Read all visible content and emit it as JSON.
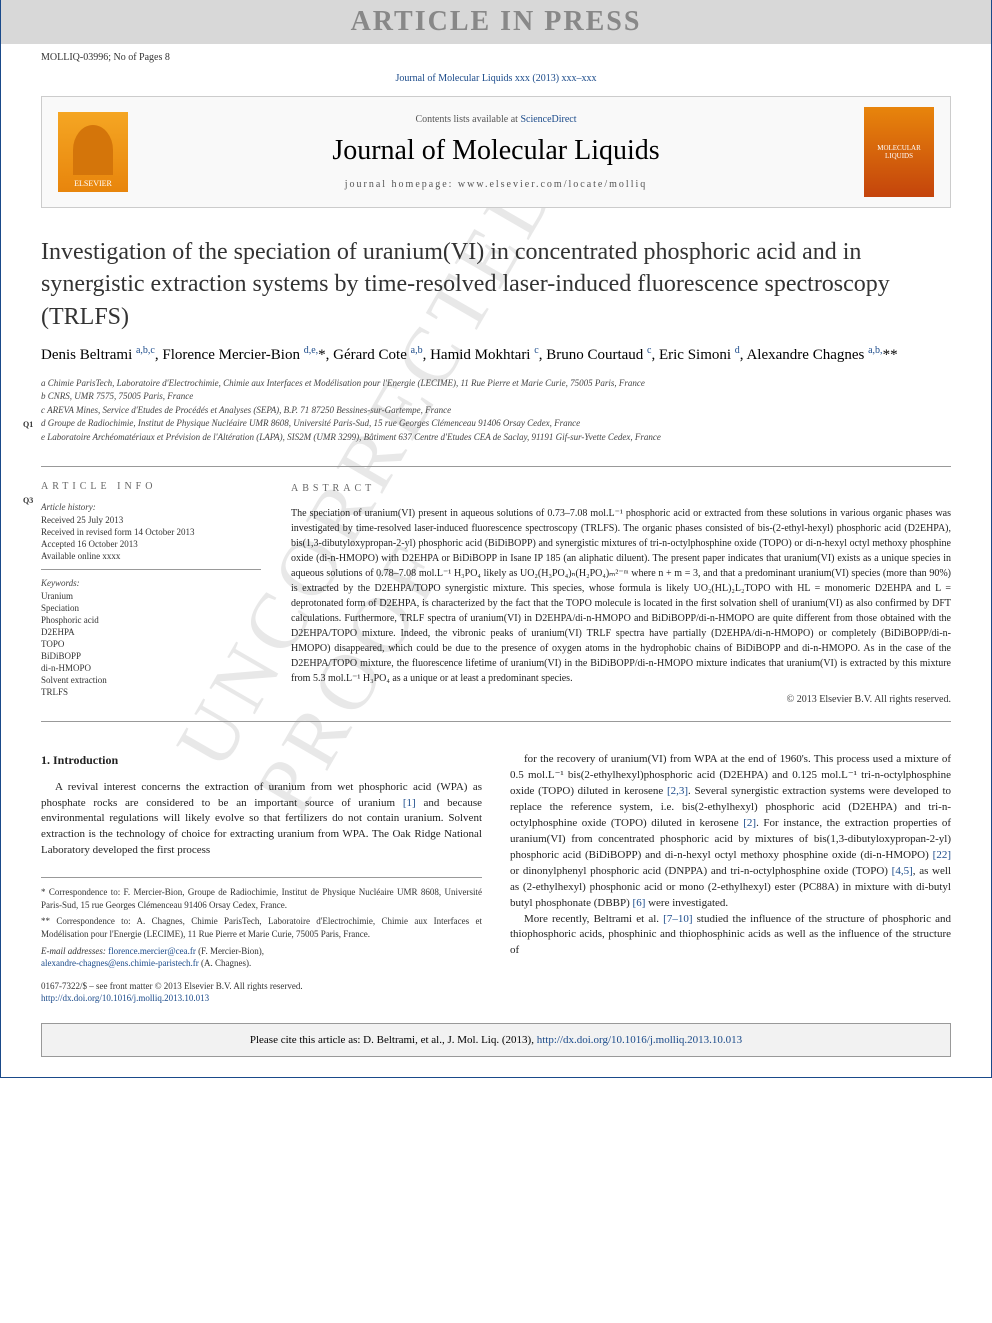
{
  "banner": {
    "text": "ARTICLE IN PRESS"
  },
  "model": "MOLLIQ-03996; No of Pages 8",
  "cite_top": "Journal of Molecular Liquids xxx (2013) xxx–xxx",
  "journal_box": {
    "contents": "Contents lists available at ",
    "contents_link": "ScienceDirect",
    "name": "Journal of Molecular Liquids",
    "homepage": "journal homepage: www.elsevier.com/locate/molliq",
    "elsevier": "ELSEVIER",
    "cover_text": "MOLECULAR LIQUIDS"
  },
  "title": "Investigation of the speciation of uranium(VI) in concentrated phosphoric acid and in synergistic extraction systems by time-resolved laser-induced fluorescence spectroscopy (TRLFS)",
  "authors_html": "Denis Beltrami <sup>a,b,c</sup>, Florence Mercier-Bion <sup>d,e,</sup>*, Gérard Cote <sup>a,b</sup>, Hamid Mokhtari <sup>c</sup>, Bruno Courtaud <sup>c</sup>, Eric Simoni <sup>d</sup>, Alexandre Chagnes <sup>a,b,</sup>**",
  "affiliations": [
    "a  Chimie ParisTech, Laboratoire d'Electrochimie, Chimie aux Interfaces et Modélisation pour l'Energie (LECIME), 11 Rue Pierre et Marie Curie, 75005 Paris, France",
    "b  CNRS, UMR 7575, 75005 Paris, France",
    "c  AREVA Mines, Service d'Etudes de Procédés et Analyses (SEPA), B.P. 71 87250 Bessines-sur-Gartempe, France",
    "d  Groupe de Radiochimie, Institut de Physique Nucléaire UMR 8608, Université Paris-Sud, 15 rue Georges Clémenceau 91406 Orsay Cedex, France",
    "e  Laboratoire Archéomatériaux et Prévision de l'Altération (LAPA), SIS2M (UMR 3299), Bâtiment 637 Centre d'Etudes CEA de Saclay, 91191 Gif-sur-Yvette Cedex, France"
  ],
  "article_info": {
    "head": "article info",
    "history_label": "Article history:",
    "received": "Received 25 July 2013",
    "revised": "Received in revised form 14 October 2013",
    "accepted": "Accepted 16 October 2013",
    "online": "Available online xxxx",
    "keywords_label": "Keywords:",
    "keywords": [
      "Uranium",
      "Speciation",
      "Phosphoric acid",
      "D2EHPA",
      "TOPO",
      "BiDiBOPP",
      "di-n-HMOPO",
      "Solvent extraction",
      "TRLFS"
    ]
  },
  "abstract": {
    "head": "abstract",
    "text": "The speciation of uranium(VI) present in aqueous solutions of 0.73–7.08 mol.L⁻¹ phosphoric acid or extracted from these solutions in various organic phases was investigated by time-resolved laser-induced fluorescence spectroscopy (TRLFS). The organic phases consisted of bis-(2-ethyl-hexyl) phosphoric acid (D2EHPA), bis(1,3-dibutyloxypropan-2-yl) phosphoric acid (BiDiBOPP) and synergistic mixtures of tri-n-octylphosphine oxide (TOPO) or di-n-hexyl octyl methoxy phosphine oxide (di-n-HMOPO) with D2EHPA or BiDiBOPP in Isane IP 185 (an aliphatic diluent). The present paper indicates that uranium(VI) exists as a unique species in aqueous solutions of 0.78–7.08 mol.L⁻¹ H₃PO₄ likely as UO₂(H₃PO₄)ₙ(H₂PO₄)ₘ²⁻ᵐ where n + m = 3, and that a predominant uranium(VI) species (more than 90%) is extracted by the D2EHPA/TOPO synergistic mixture. This species, whose formula is likely UO₂(HL)₂L₂TOPO with HL = monomeric D2EHPA and L = deprotonated form of D2EHPA, is characterized by the fact that the TOPO molecule is located in the first solvation shell of uranium(VI) as also confirmed by DFT calculations. Furthermore, TRLF spectra of uranium(VI) in D2EHPA/di-n-HMOPO and BiDiBOPP/di-n-HMOPO are quite different from those obtained with the D2EHPA/TOPO mixture. Indeed, the vibronic peaks of uranium(VI) TRLF spectra have partially (D2EHPA/di-n-HMOPO) or completely (BiDiBOPP/di-n-HMOPO) disappeared, which could be due to the presence of oxygen atoms in the hydrophobic chains of BiDiBOPP and di-n-HMOPO. As in the case of the D2EHPA/TOPO mixture, the fluorescence lifetime of uranium(VI) in the BiDiBOPP/di-n-HMOPO mixture indicates that uranium(VI) is extracted by this mixture from 5.3 mol.L⁻¹ H₃PO₄ as a unique or at least a predominant species.",
    "copyright": "© 2013 Elsevier B.V. All rights reserved."
  },
  "section1": {
    "head": "1. Introduction",
    "p1": "A revival interest concerns the extraction of uranium from wet phosphoric acid (WPA) as phosphate rocks are considered to be an important source of uranium [1] and because environmental regulations will likely evolve so that fertilizers do not contain uranium. Solvent extraction is the technology of choice for extracting uranium from WPA. The Oak Ridge National Laboratory developed the first process",
    "p2": "for the recovery of uranium(VI) from WPA at the end of 1960's. This process used a mixture of 0.5 mol.L⁻¹ bis(2-ethylhexyl)phosphoric acid (D2EHPA) and 0.125 mol.L⁻¹ tri-n-octylphosphine oxide (TOPO) diluted in kerosene [2,3]. Several synergistic extraction systems were developed to replace the reference system, i.e. bis(2-ethylhexyl) phosphoric acid (D2EHPA) and tri-n-octylphosphine oxide (TOPO) diluted in kerosene [2]. For instance, the extraction properties of uranium(VI) from concentrated phosphoric acid by mixtures of bis(1,3-dibutyloxypropan-2-yl) phosphoric acid (BiDiBOPP) and di-n-hexyl octyl methoxy phosphine oxide (di-n-HMOPO) [22] or dinonylphenyl phosphoric acid (DNPPA) and tri-n-octylphosphine oxide (TOPO) [4,5], as well as (2-ethylhexyl) phosphonic acid or mono (2-ethylhexyl) ester (PC88A) in mixture with di-butyl butyl phosphonate (DBBP) [6] were investigated.",
    "p3": "More recently, Beltrami et al. [7–10] studied the influence of the structure of phosphoric and thiophosphoric acids, phosphinic and thiophosphinic acids as well as the influence of the structure of"
  },
  "footnotes": {
    "c1": "*  Correspondence to: F. Mercier-Bion, Groupe de Radiochimie, Institut de Physique Nucléaire UMR 8608, Université Paris-Sud, 15 rue Georges Clémenceau 91406 Orsay Cedex, France.",
    "c2": "** Correspondence to: A. Chagnes, Chimie ParisTech, Laboratoire d'Electrochimie, Chimie aux Interfaces et Modélisation pour l'Energie (LECIME), 11 Rue Pierre et Marie Curie, 75005 Paris, France.",
    "email_label": "E-mail addresses: ",
    "email1": "florence.mercier@cea.fr",
    "email1_name": " (F. Mercier-Bion),",
    "email2": "alexandre-chagnes@ens.chimie-paristech.fr",
    "email2_name": " (A. Chagnes)."
  },
  "bottom": {
    "issn": "0167-7322/$ – see front matter © 2013 Elsevier B.V. All rights reserved.",
    "doi": "http://dx.doi.org/10.1016/j.molliq.2013.10.013"
  },
  "cite_box": {
    "prefix": "Please cite this article as: D. Beltrami, et al.,  J. Mol. Liq. (2013), ",
    "link": "http://dx.doi.org/10.1016/j.molliq.2013.10.013"
  },
  "q_labels": {
    "q1": "Q1",
    "q3": "Q3"
  },
  "watermark": "UNCORRECTED PROOF",
  "colors": {
    "link": "#1a4a8a",
    "banner_bg": "#d8d8d8",
    "banner_fg": "#888888",
    "border": "#999999",
    "body_text": "#222222"
  }
}
